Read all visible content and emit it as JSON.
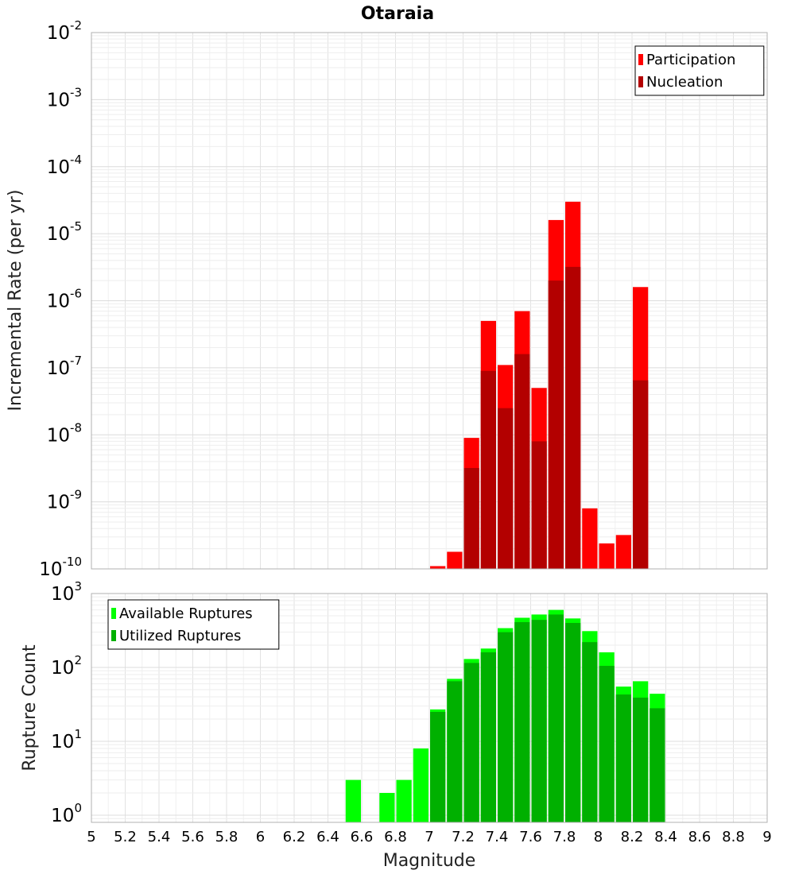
{
  "chart_data": [
    {
      "type": "bar",
      "title": "Otaraia",
      "xlabel": "",
      "ylabel": "Incremental Rate (per yr)",
      "xlim": [
        5,
        9
      ],
      "ylim": [
        1e-10,
        0.01
      ],
      "log_y": true,
      "grid": true,
      "legend_position": "top-right",
      "bin_width": 0.1,
      "y_tick_exponents": [
        -10,
        -9,
        -8,
        -7,
        -6,
        -5,
        -4,
        -3,
        -2
      ],
      "x_centers": [
        7.05,
        7.15,
        7.25,
        7.35,
        7.45,
        7.55,
        7.65,
        7.75,
        7.85,
        7.95,
        8.05,
        8.15,
        8.25
      ],
      "series": [
        {
          "name": "Participation",
          "color": "#ff0000",
          "values": [
            1.1e-10,
            1.8e-10,
            9e-09,
            5e-07,
            1.1e-07,
            7e-07,
            5e-08,
            1.6e-05,
            3e-05,
            8e-10,
            2.4e-10,
            3.2e-10,
            1.6e-06
          ]
        },
        {
          "name": "Nucleation",
          "color": "#b30000",
          "values": [
            null,
            null,
            3.2e-09,
            9e-08,
            2.5e-08,
            1.6e-07,
            8e-09,
            2e-06,
            3.2e-06,
            null,
            null,
            null,
            6.5e-08
          ]
        }
      ]
    },
    {
      "type": "bar",
      "title": "",
      "xlabel": "Magnitude",
      "ylabel": "Rupture Count",
      "xlim": [
        5,
        9
      ],
      "ylim": [
        0.8,
        1000
      ],
      "log_y": true,
      "grid": true,
      "legend_position": "top-left",
      "bin_width": 0.1,
      "x_ticks": [
        "5",
        "5.2",
        "5.4",
        "5.6",
        "5.8",
        "6",
        "6.2",
        "6.4",
        "6.6",
        "6.8",
        "7",
        "7.2",
        "7.4",
        "7.6",
        "7.8",
        "8",
        "8.2",
        "8.4",
        "8.6",
        "8.8",
        "9"
      ],
      "y_tick_exponents": [
        0,
        1,
        2,
        3
      ],
      "x_centers": [
        6.55,
        6.75,
        6.85,
        6.95,
        7.05,
        7.15,
        7.25,
        7.35,
        7.45,
        7.55,
        7.65,
        7.75,
        7.85,
        7.95,
        8.05,
        8.15,
        8.25,
        8.35
      ],
      "series": [
        {
          "name": "Available Ruptures",
          "color": "#00ff00",
          "values": [
            3,
            2,
            3,
            8,
            27,
            70,
            130,
            180,
            340,
            470,
            520,
            600,
            460,
            310,
            160,
            55,
            65,
            44
          ]
        },
        {
          "name": "Utilized Ruptures",
          "color": "#00b000",
          "values": [
            null,
            null,
            null,
            null,
            25,
            65,
            115,
            160,
            300,
            410,
            440,
            520,
            400,
            220,
            105,
            43,
            39,
            28
          ]
        }
      ]
    }
  ]
}
